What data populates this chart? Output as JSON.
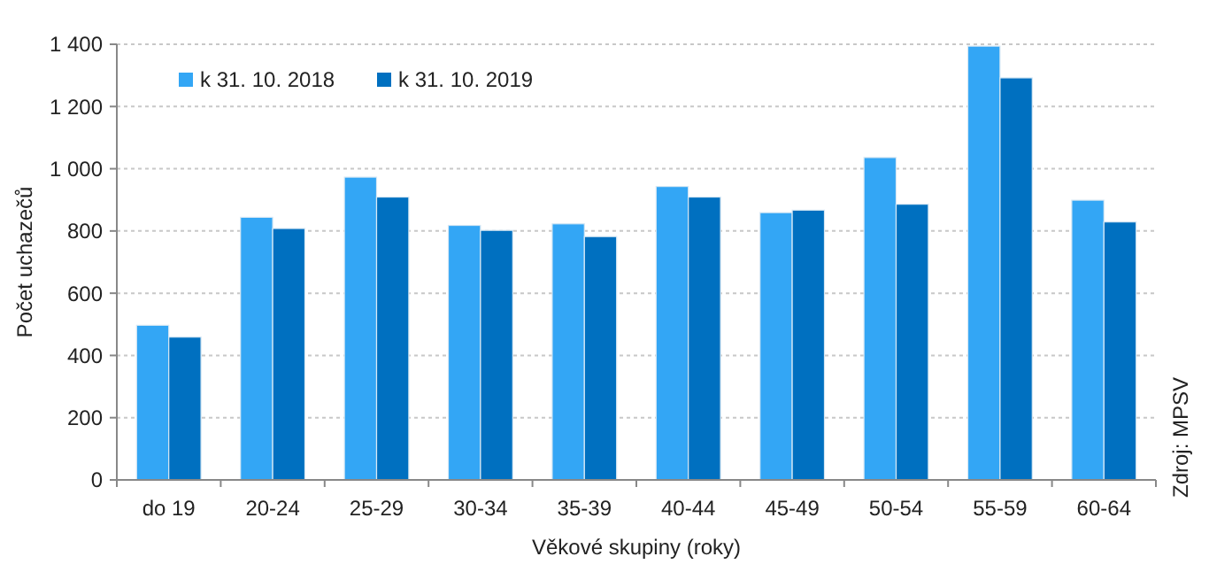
{
  "chart_data": {
    "type": "bar",
    "xlabel": "Věkové skupiny (roky)",
    "ylabel": "Počet uchazečů",
    "categories": [
      "do 19",
      "20-24",
      "25-29",
      "30-34",
      "35-39",
      "40-44",
      "45-49",
      "50-54",
      "55-59",
      "60-64"
    ],
    "series": [
      {
        "name": "k 31. 10. 2018",
        "color": "#33a6f5",
        "values": [
          497,
          844,
          973,
          818,
          823,
          943,
          859,
          1036,
          1394,
          899
        ]
      },
      {
        "name": "k 31. 10. 2019",
        "color": "#0070c0",
        "values": [
          459,
          808,
          909,
          802,
          782,
          909,
          867,
          886,
          1292,
          829
        ]
      }
    ],
    "ylim": [
      0,
      1400
    ],
    "yticks": [
      {
        "value": 0,
        "label": "0"
      },
      {
        "value": 200,
        "label": "200"
      },
      {
        "value": 400,
        "label": "400"
      },
      {
        "value": 600,
        "label": "600"
      },
      {
        "value": 800,
        "label": "800"
      },
      {
        "value": 1000,
        "label": "1 000"
      },
      {
        "value": 1200,
        "label": "1 200"
      },
      {
        "value": 1400,
        "label": "1 400"
      }
    ],
    "grid": "y",
    "legend": "top left",
    "annotations": [
      "Zdroj: MPSV"
    ]
  }
}
